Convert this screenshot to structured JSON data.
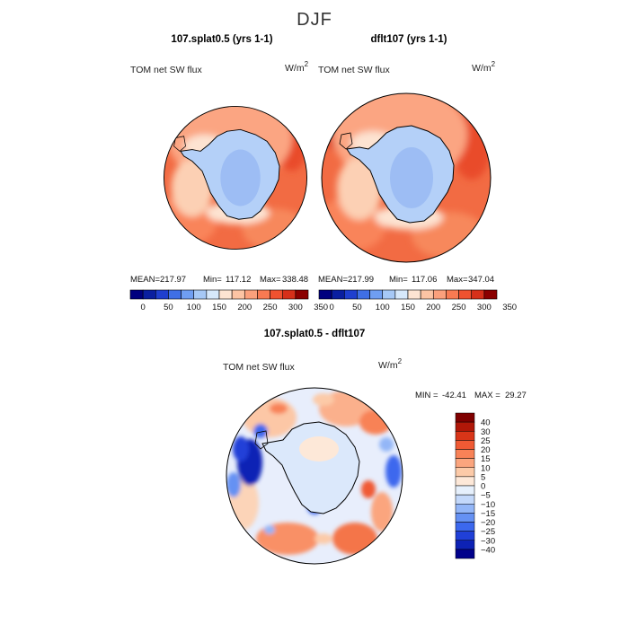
{
  "figure": {
    "title": "DJF",
    "difference_title": "107.splat0.5 - dflt107"
  },
  "colors": {
    "abs_scale": [
      "#00007f",
      "#0a1fa0",
      "#1f3fcf",
      "#3f6fe6",
      "#6f9ef2",
      "#a6c8f6",
      "#d6e8fb",
      "#fde4d2",
      "#fcc4a4",
      "#fba07c",
      "#f87a52",
      "#ef5230",
      "#d6301a",
      "#8b0000"
    ],
    "diff_scale": [
      "#00008b",
      "#0d22b5",
      "#2040d8",
      "#3c68ee",
      "#6591f3",
      "#93b6f7",
      "#c3d8fa",
      "#e6f0fc",
      "#fde8d8",
      "#fccaa8",
      "#fba57e",
      "#f88257",
      "#f05a34",
      "#d93518",
      "#b01708",
      "#7f0000"
    ],
    "coast": "#000000"
  },
  "panels": [
    {
      "title": "107.splat0.5 (yrs 1-1)",
      "variable": "TOM net SW flux",
      "units": "W/m",
      "units_exp": "2",
      "mean_label": "MEAN=",
      "mean": "217.97",
      "min_label": "Min=",
      "min": "117.12",
      "max_label": "Max=",
      "max": "338.48",
      "colorbar_ticks": [
        "0",
        "50",
        "100",
        "150",
        "200",
        "250",
        "300",
        "350"
      ]
    },
    {
      "title": "dflt107 (yrs 1-1)",
      "variable": "TOM net SW flux",
      "units": "W/m",
      "units_exp": "2",
      "mean_label": "MEAN=",
      "mean": "217.99",
      "min_label": "Min=",
      "min": "117.06",
      "max_label": "Max=",
      "max": "347.04",
      "colorbar_ticks": [
        "0",
        "50",
        "100",
        "150",
        "200",
        "250",
        "300",
        "350"
      ]
    }
  ],
  "difference": {
    "variable": "TOM net SW flux",
    "units": "W/m",
    "units_exp": "2",
    "min_label": "MIN =",
    "min": "-42.41",
    "max_label": "MAX =",
    "max": "29.27",
    "colorbar_ticks": [
      "40",
      "30",
      "25",
      "20",
      "15",
      "10",
      "5",
      "0",
      "−5",
      "−10",
      "−15",
      "−20",
      "−25",
      "−30",
      "−40"
    ]
  }
}
